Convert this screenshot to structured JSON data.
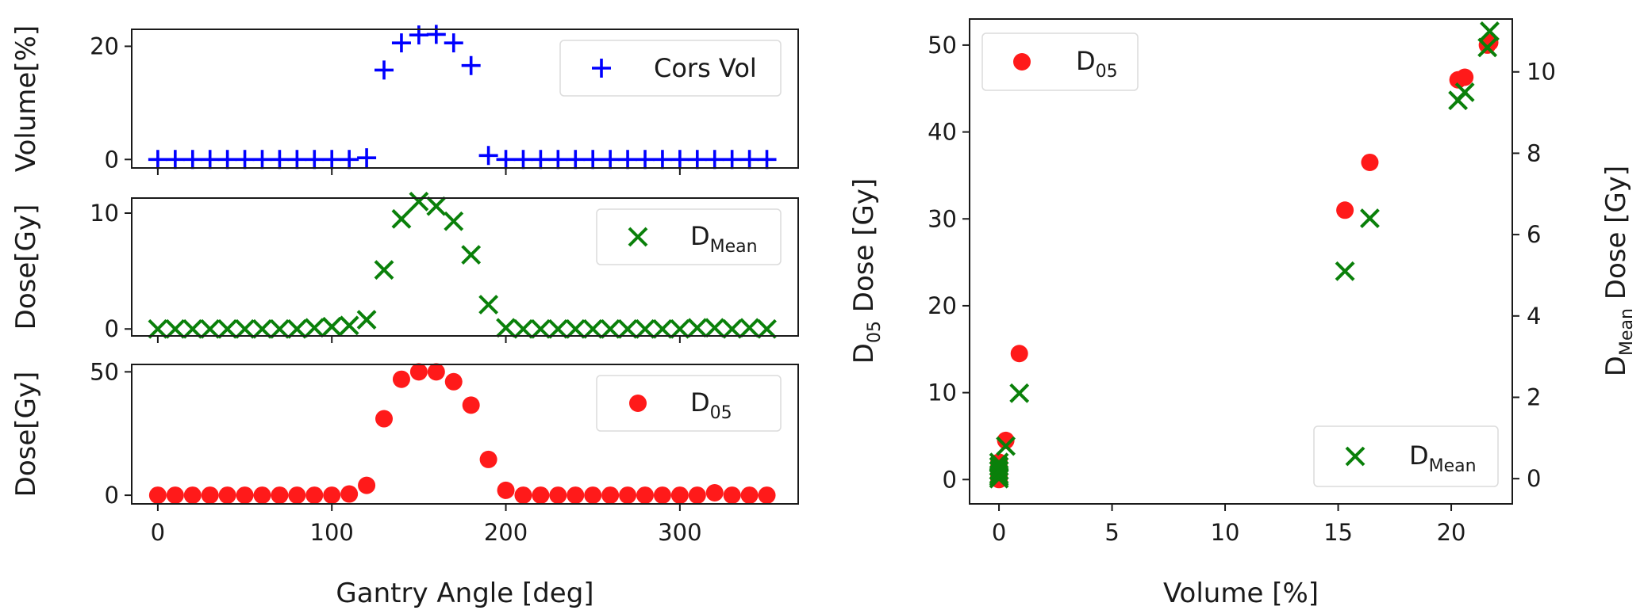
{
  "colors": {
    "vol": "#0000ff",
    "dmean": "#0a800a",
    "d05": "#ff1a1a",
    "axis": "#1a1a1a"
  },
  "chart_data": [
    {
      "id": "volume",
      "type": "scatter",
      "ylabel": "Volume[%]",
      "xlim": [
        -15,
        368
      ],
      "ylim": [
        -1.5,
        23
      ],
      "yticks": [
        0,
        20
      ],
      "xticks": [
        0,
        100,
        200,
        300
      ],
      "x_ticklabels_visible": false,
      "legend": {
        "label": "Cors Vol",
        "placement": "upper-right"
      },
      "marker": "plus",
      "x": [
        0,
        10,
        20,
        30,
        40,
        50,
        60,
        70,
        80,
        90,
        100,
        110,
        120,
        130,
        140,
        150,
        160,
        170,
        180,
        190,
        200,
        210,
        220,
        230,
        240,
        250,
        260,
        270,
        280,
        290,
        300,
        310,
        320,
        330,
        340,
        350
      ],
      "y": [
        0,
        0,
        0,
        0,
        0,
        0,
        0,
        0,
        0,
        0,
        0,
        0,
        0.3,
        15.8,
        20.6,
        22,
        22.1,
        20.6,
        16.6,
        0.7,
        0,
        0,
        0,
        0,
        0,
        0,
        0,
        0,
        0,
        0,
        0,
        0,
        0,
        0,
        0,
        0
      ]
    },
    {
      "id": "dmean",
      "type": "scatter",
      "ylabel": "Dose[Gy]",
      "xlim": [
        -15,
        368
      ],
      "ylim": [
        -0.6,
        11.3
      ],
      "yticks": [
        0,
        10
      ],
      "xticks": [
        0,
        100,
        200,
        300
      ],
      "x_ticklabels_visible": false,
      "legend": {
        "label": "D",
        "sub": "Mean",
        "placement": "upper-right"
      },
      "marker": "x",
      "x": [
        0,
        10,
        20,
        30,
        40,
        50,
        60,
        70,
        80,
        90,
        100,
        110,
        120,
        130,
        140,
        150,
        160,
        170,
        180,
        190,
        200,
        210,
        220,
        230,
        240,
        250,
        260,
        270,
        280,
        290,
        300,
        310,
        320,
        330,
        340,
        350
      ],
      "y": [
        0,
        0,
        0,
        0,
        0,
        0,
        0,
        0,
        0,
        0.1,
        0.2,
        0.3,
        0.8,
        5.1,
        9.5,
        11,
        10.6,
        9.3,
        6.4,
        2.1,
        0.1,
        0,
        0,
        0,
        0,
        0,
        0,
        0,
        0,
        0,
        0,
        0.1,
        0.1,
        0,
        0.1,
        0
      ]
    },
    {
      "id": "d05",
      "type": "scatter",
      "ylabel": "Dose[Gy]",
      "xlabel": "Gantry Angle [deg]",
      "xlim": [
        -15,
        368
      ],
      "ylim": [
        -3.5,
        53
      ],
      "yticks": [
        0,
        50
      ],
      "xticks": [
        0,
        100,
        200,
        300
      ],
      "x_ticklabels_visible": true,
      "legend": {
        "label": "D",
        "sub": "05",
        "placement": "upper-right"
      },
      "marker": "circle",
      "x": [
        0,
        10,
        20,
        30,
        40,
        50,
        60,
        70,
        80,
        90,
        100,
        110,
        120,
        130,
        140,
        150,
        160,
        170,
        180,
        190,
        200,
        210,
        220,
        230,
        240,
        250,
        260,
        270,
        280,
        290,
        300,
        310,
        320,
        330,
        340,
        350
      ],
      "y": [
        0,
        0,
        0,
        0,
        0,
        0,
        0,
        0,
        0,
        0,
        0,
        0.5,
        4,
        31,
        47,
        50,
        50,
        46,
        36.5,
        14.5,
        2,
        0,
        0,
        0,
        0,
        0,
        0,
        0,
        0,
        0,
        0,
        0,
        1,
        0,
        0,
        0
      ]
    },
    {
      "id": "scatter-volume",
      "type": "scatter",
      "xlabel": "Volume [%]",
      "ylabel": "D05 Dose [Gy]",
      "ylabel_parts": {
        "main": "D",
        "sub": "05",
        "rest": " Dose [Gy]"
      },
      "ylabel_right_parts": {
        "main": "D",
        "sub": "Mean",
        "rest": " Dose [Gy]"
      },
      "xlim": [
        -1.3,
        22.7
      ],
      "xticks": [
        0,
        5,
        10,
        15,
        20
      ],
      "ylim_left": [
        -2.8,
        53
      ],
      "yticks_left": [
        0,
        10,
        20,
        30,
        40,
        50
      ],
      "ylim_right": [
        -0.62,
        11.3
      ],
      "yticks_right": [
        0,
        2,
        4,
        6,
        8,
        10
      ],
      "series": [
        {
          "name": "D05",
          "legend": {
            "label": "D",
            "sub": "05",
            "placement": "upper-left"
          },
          "axis": "left",
          "marker": "circle",
          "points": [
            [
              0,
              0
            ],
            [
              0,
              0.2
            ],
            [
              0,
              0.5
            ],
            [
              0,
              1
            ],
            [
              0,
              1.5
            ],
            [
              0,
              2
            ],
            [
              0.3,
              4.5
            ],
            [
              0.9,
              14.5
            ],
            [
              15.3,
              31
            ],
            [
              16.4,
              36.5
            ],
            [
              20.3,
              46
            ],
            [
              20.6,
              46.3
            ],
            [
              21.6,
              50
            ],
            [
              21.7,
              50.3
            ]
          ]
        },
        {
          "name": "DMean",
          "legend": {
            "label": "D",
            "sub": "Mean",
            "placement": "lower-right"
          },
          "axis": "right",
          "marker": "x",
          "points": [
            [
              0,
              0
            ],
            [
              0,
              0.05
            ],
            [
              0,
              0.1
            ],
            [
              0,
              0.2
            ],
            [
              0,
              0.3
            ],
            [
              0,
              0.4
            ],
            [
              0,
              0.2
            ],
            [
              0.3,
              0.8
            ],
            [
              0.9,
              2.1
            ],
            [
              15.3,
              5.1
            ],
            [
              16.4,
              6.4
            ],
            [
              20.3,
              9.3
            ],
            [
              20.6,
              9.5
            ],
            [
              21.6,
              10.6
            ],
            [
              21.7,
              11
            ]
          ]
        }
      ]
    }
  ]
}
